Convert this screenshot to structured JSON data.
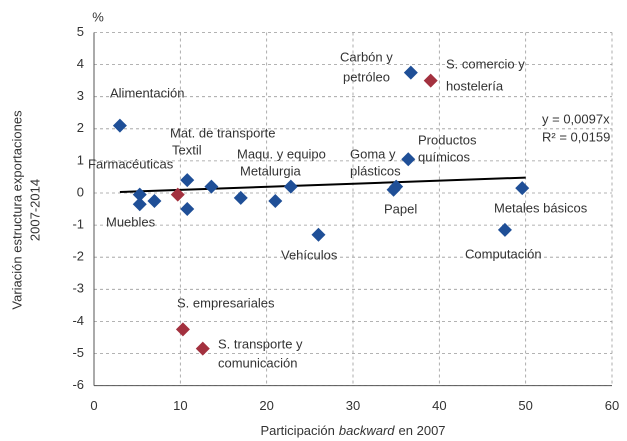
{
  "chart_data": {
    "type": "scatter",
    "y_label": [
      "Variación estructura exportaciones",
      "2007-2014"
    ],
    "x_label": {
      "before": "Participación",
      "italic": "backward",
      "after": "en 2007"
    },
    "y_unit": "%",
    "xlim": [
      0,
      60
    ],
    "xticks": [
      0,
      10,
      20,
      30,
      40,
      50,
      60
    ],
    "ylim": [
      -6,
      5
    ],
    "yticks": [
      -6,
      -5,
      -4,
      -3,
      -2,
      -1,
      0,
      1,
      2,
      3,
      4,
      5
    ],
    "grid": true,
    "series": [
      {
        "color": "#1f4f97",
        "x": [
          3,
          5.3,
          5.3,
          7,
          10.8,
          10.8,
          13.6,
          17,
          21,
          22.8,
          26,
          34.7,
          35,
          36.4,
          36.7,
          49.6,
          47.6
        ],
        "values": [
          2.1,
          -0.05,
          -0.35,
          -0.25,
          0.4,
          -0.5,
          0.2,
          -0.15,
          -0.25,
          0.2,
          -1.3,
          0.1,
          0.2,
          1.05,
          3.75,
          0.15,
          -1.15
        ]
      },
      {
        "color": "#a3313f",
        "x": [
          9.7,
          39,
          10.3,
          12.6
        ],
        "values": [
          -0.05,
          3.5,
          -4.25,
          -4.85
        ]
      }
    ],
    "trendline": {
      "color": "#000000",
      "x": [
        3,
        50
      ],
      "values": [
        0.03,
        0.48
      ]
    },
    "annotations": [
      "Alimentación",
      "Farmacéuticas",
      "Muebles",
      "Textil",
      "Mat. de transporte",
      "Maqu. y equipo",
      "Metalurgia",
      "Vehículos",
      "Carbón y",
      "petróleo",
      "S. comercio y",
      "hostelería",
      "Productos",
      "químicos",
      "Goma y",
      "plásticos",
      "Papel",
      "Metales básicos",
      "Computación",
      "S. empresariales",
      "S. transporte y",
      "comunicación",
      "y = 0,0097x",
      "R² = 0,0159"
    ]
  }
}
